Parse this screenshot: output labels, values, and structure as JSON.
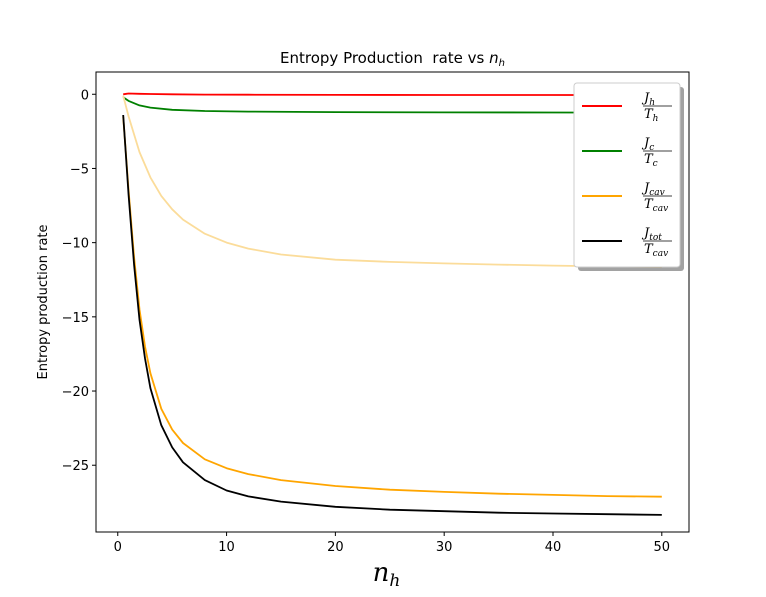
{
  "chart_data": {
    "type": "line",
    "title": "Entropy Production  rate vs n",
    "title_var_sub": "h",
    "xlabel": "n",
    "xlabel_sub": "h",
    "ylabel": "Entropy production rate",
    "xlim": [
      -2,
      52.5
    ],
    "ylim": [
      -29.5,
      1.5
    ],
    "xticks": [
      0,
      10,
      20,
      30,
      40,
      50
    ],
    "yticks": [
      0,
      -5,
      -10,
      -15,
      -20,
      -25
    ],
    "ytick_labels": [
      "0",
      "−5",
      "−10",
      "−15",
      "−20",
      "−25"
    ],
    "grid": false,
    "legend_position": "top-right",
    "series": [
      {
        "name": "J_h / T_h",
        "num": "J",
        "num_sub": "h",
        "den": "T",
        "den_sub": "h",
        "color": "#ff0000",
        "x": [
          0.5,
          1,
          2,
          3,
          5,
          8,
          12,
          20,
          30,
          40,
          50
        ],
        "y": [
          0.0,
          0.05,
          0.03,
          0.02,
          0.0,
          -0.02,
          -0.03,
          -0.04,
          -0.05,
          -0.05,
          -0.06
        ]
      },
      {
        "name": "J_c / T_c",
        "num": "J",
        "num_sub": "c",
        "den": "T",
        "den_sub": "c",
        "color": "#008000",
        "x": [
          0.5,
          1,
          2,
          3,
          5,
          8,
          12,
          20,
          30,
          40,
          50
        ],
        "y": [
          -0.2,
          -0.45,
          -0.75,
          -0.9,
          -1.05,
          -1.13,
          -1.17,
          -1.2,
          -1.22,
          -1.23,
          -1.24
        ]
      },
      {
        "name": "J_cav / T_cav (light)",
        "num": "J",
        "num_sub": "cav",
        "den": "T",
        "den_sub": "cav",
        "color": "#fbdc9a",
        "in_legend": false,
        "x": [
          0.5,
          1,
          2,
          3,
          4,
          5,
          6,
          8,
          10,
          12,
          15,
          20,
          25,
          30,
          35,
          40,
          45,
          50
        ],
        "y": [
          -0.1,
          -1.5,
          -3.9,
          -5.6,
          -6.85,
          -7.75,
          -8.45,
          -9.4,
          -10.0,
          -10.4,
          -10.8,
          -11.15,
          -11.3,
          -11.4,
          -11.48,
          -11.55,
          -11.6,
          -11.65
        ]
      },
      {
        "name": "J_cav / T_cav",
        "num": "J",
        "num_sub": "cav",
        "den": "T",
        "den_sub": "cav",
        "color": "#ffa500",
        "x": [
          0.5,
          1,
          1.5,
          2,
          2.5,
          3,
          4,
          5,
          6,
          8,
          10,
          12,
          15,
          20,
          25,
          30,
          35,
          40,
          45,
          50
        ],
        "y": [
          -1.5,
          -6.5,
          -11.0,
          -14.5,
          -17.0,
          -18.8,
          -21.2,
          -22.6,
          -23.5,
          -24.6,
          -25.2,
          -25.6,
          -26.0,
          -26.4,
          -26.65,
          -26.8,
          -26.92,
          -27.0,
          -27.08,
          -27.12
        ]
      },
      {
        "name": "J_tot / T_cav",
        "num": "J",
        "num_sub": "tot",
        "den": "T",
        "den_sub": "cav",
        "color": "#000000",
        "x": [
          0.5,
          1,
          1.5,
          2,
          2.5,
          3,
          4,
          5,
          6,
          8,
          10,
          12,
          15,
          20,
          25,
          30,
          35,
          40,
          45,
          50
        ],
        "y": [
          -1.4,
          -6.8,
          -11.5,
          -15.2,
          -17.8,
          -19.8,
          -22.3,
          -23.8,
          -24.8,
          -26.0,
          -26.7,
          -27.1,
          -27.45,
          -27.8,
          -28.0,
          -28.1,
          -28.2,
          -28.25,
          -28.3,
          -28.35
        ]
      }
    ]
  }
}
